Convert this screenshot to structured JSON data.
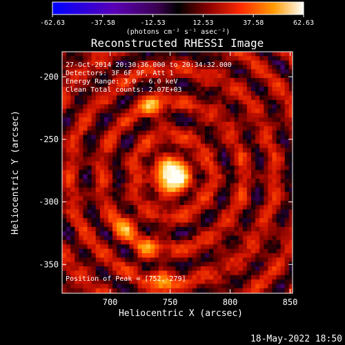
{
  "chart_data": {
    "type": "heatmap",
    "title": "Reconstructed RHESSI Image",
    "xlabel": "Heliocentric X (arcsec)",
    "ylabel": "Heliocentric Y (arcsec)",
    "xlim": [
      660,
      852
    ],
    "ylim": [
      -373,
      -180
    ],
    "x_ticks": [
      700,
      750,
      800,
      850
    ],
    "y_ticks": [
      -200,
      -250,
      -300,
      -350
    ],
    "colorbar": {
      "min": -62.63,
      "max": 62.63,
      "ticks": [
        "-62.63",
        "-37.58",
        "-12.53",
        "12.53",
        "37.58",
        "62.63"
      ],
      "units": "(photons cm⁻² s⁻¹ asec⁻²)"
    },
    "info_lines": [
      "27-Oct-2014 20:30:36.000 to 20:34:32.000",
      "Detectors: 3F 6F 9F, Att 1",
      "Energy Range: 3.0 - 6.0 keV",
      "Clean     Total counts: 2.07E+03"
    ],
    "peak_text": "Position of Peak = [752,-279]",
    "peak": {
      "x": 752,
      "y": -279
    },
    "secondary_sources": [
      {
        "x": 735,
        "y": -223,
        "level": 0.55
      },
      {
        "x": 712,
        "y": -320,
        "level": 0.55
      },
      {
        "x": 744,
        "y": -366,
        "level": 0.55
      },
      {
        "x": 730,
        "y": -338,
        "level": 0.45
      }
    ],
    "colormap": "red temperature",
    "grid": false,
    "date_stamp": "18-May-2022 18:50"
  }
}
